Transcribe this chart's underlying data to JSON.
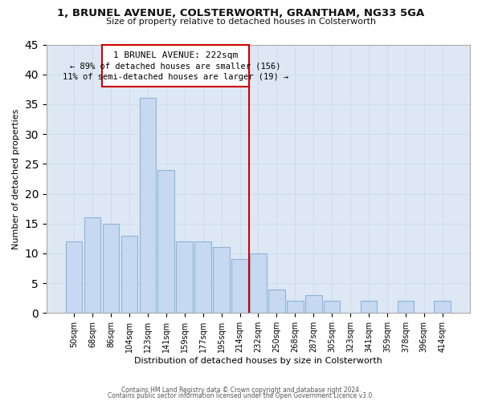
{
  "title": "1, BRUNEL AVENUE, COLSTERWORTH, GRANTHAM, NG33 5GA",
  "subtitle": "Size of property relative to detached houses in Colsterworth",
  "xlabel": "Distribution of detached houses by size in Colsterworth",
  "ylabel": "Number of detached properties",
  "bar_labels": [
    "50sqm",
    "68sqm",
    "86sqm",
    "104sqm",
    "123sqm",
    "141sqm",
    "159sqm",
    "177sqm",
    "195sqm",
    "214sqm",
    "232sqm",
    "250sqm",
    "268sqm",
    "287sqm",
    "305sqm",
    "323sqm",
    "341sqm",
    "359sqm",
    "378sqm",
    "396sqm",
    "414sqm"
  ],
  "bar_values": [
    12,
    16,
    15,
    13,
    36,
    24,
    12,
    12,
    11,
    9,
    10,
    4,
    2,
    3,
    2,
    0,
    2,
    0,
    2,
    0,
    2
  ],
  "bar_color": "#c6d9f0",
  "bar_edge_color": "#8fb4d9",
  "vline_color": "#cc0000",
  "annotation_title": "1 BRUNEL AVENUE: 222sqm",
  "annotation_line1": "← 89% of detached houses are smaller (156)",
  "annotation_line2": "11% of semi-detached houses are larger (19) →",
  "annotation_box_color": "#ffffff",
  "annotation_box_edge_color": "#cc0000",
  "ylim": [
    0,
    45
  ],
  "yticks": [
    0,
    5,
    10,
    15,
    20,
    25,
    30,
    35,
    40,
    45
  ],
  "footer1": "Contains HM Land Registry data © Crown copyright and database right 2024.",
  "footer2": "Contains public sector information licensed under the Open Government Licence v3.0.",
  "bg_color": "#ffffff",
  "grid_color": "#c8d8e8"
}
